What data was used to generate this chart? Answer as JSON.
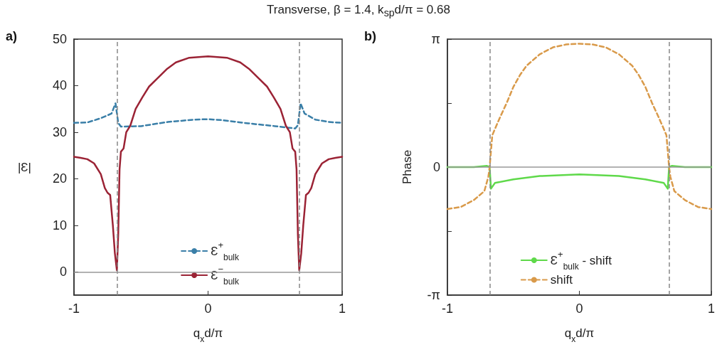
{
  "chart_data": [
    {
      "type": "line",
      "title": "Transverse, β = 1.4, k$_{sp}$d/π = 0.68",
      "annotations": [
        "a)"
      ],
      "xlabel": "q$_{x}$d/π",
      "ylabel": "|Ɛ|",
      "xlim": [
        -1,
        1
      ],
      "xticks": [
        -1,
        0,
        1
      ],
      "ylim": [
        -5,
        50
      ],
      "yticks": [
        0,
        10,
        20,
        30,
        40,
        50
      ],
      "grid": false,
      "legend": "bottom right",
      "marker": "none",
      "ref_lines": [
        {
          "axis": "x",
          "value": -0.68,
          "label": null,
          "color": "#888888",
          "line_style": "dashed"
        },
        {
          "axis": "x",
          "value": 0.68,
          "label": null,
          "color": "#888888",
          "line_style": "dashed"
        },
        {
          "axis": "y",
          "value": 0,
          "label": null,
          "color": "#999999",
          "line_style": "solid"
        }
      ],
      "series": [
        {
          "name": "Ɛ$^{+}$$_{bulk}$",
          "color": "#3a7fa8",
          "line_style": "dashed",
          "x": [
            -1,
            -0.9,
            -0.8,
            -0.72,
            -0.69,
            -0.67,
            -0.65,
            -0.5,
            -0.3,
            -0.1,
            0,
            0.1,
            0.3,
            0.5,
            0.65,
            0.67,
            0.69,
            0.72,
            0.8,
            0.9,
            1
          ],
          "values": [
            32,
            32.1,
            33,
            34,
            36.2,
            32,
            31.2,
            31.3,
            32.2,
            32.7,
            32.8,
            32.6,
            31.9,
            31.3,
            30.8,
            31.5,
            36.2,
            34,
            32.7,
            32.2,
            32
          ]
        },
        {
          "name": "Ɛ$^{−}$$_{bulk}$",
          "color": "#9b2335",
          "line_style": "solid",
          "x": [
            -1,
            -0.95,
            -0.9,
            -0.85,
            -0.8,
            -0.77,
            -0.75,
            -0.73,
            -0.71,
            -0.695,
            -0.68,
            -0.67,
            -0.66,
            -0.65,
            -0.63,
            -0.61,
            -0.58,
            -0.54,
            -0.49,
            -0.44,
            -0.38,
            -0.31,
            -0.24,
            -0.14,
            0,
            0.14,
            0.24,
            0.31,
            0.38,
            0.44,
            0.49,
            0.54,
            0.58,
            0.61,
            0.63,
            0.65,
            0.66,
            0.67,
            0.68,
            0.695,
            0.71,
            0.73,
            0.75,
            0.77,
            0.8,
            0.85,
            0.9,
            0.95,
            1
          ],
          "values": [
            24.7,
            24.5,
            24.2,
            23.3,
            21,
            18,
            17,
            16.5,
            10,
            4,
            0.3,
            8,
            22,
            25.8,
            26.5,
            30,
            31.4,
            35,
            37.5,
            39.8,
            41.5,
            43.5,
            45,
            46,
            46.3,
            46,
            45,
            43.5,
            41.5,
            39.8,
            37.5,
            35,
            31.4,
            30,
            26.5,
            25.8,
            22,
            8,
            0.3,
            4,
            10,
            16.5,
            17,
            18,
            21,
            23.3,
            24.2,
            24.5,
            24.7
          ]
        }
      ]
    },
    {
      "type": "line",
      "annotations": [
        "b)"
      ],
      "xlabel": "q$_{x}$d/π",
      "ylabel": "Phase",
      "xlim": [
        -1,
        1
      ],
      "xticks": [
        -1,
        0,
        1
      ],
      "ylim": [
        -3.1416,
        3.1416
      ],
      "yticks": [
        {
          "value": -3.1416,
          "label": "-π"
        },
        {
          "value": -1.5708,
          "label": null
        },
        0,
        {
          "value": 1.5708,
          "label": null
        },
        {
          "value": 3.1416,
          "label": "π"
        }
      ],
      "grid": false,
      "legend": "bottom right",
      "marker": "none",
      "ref_lines": [
        {
          "axis": "x",
          "value": -0.68,
          "label": null,
          "color": "#888888",
          "line_style": "dashed"
        },
        {
          "axis": "x",
          "value": 0.68,
          "label": null,
          "color": "#888888",
          "line_style": "dashed"
        },
        {
          "axis": "y",
          "value": 0,
          "label": null,
          "color": "#999999",
          "line_style": "solid"
        }
      ],
      "series": [
        {
          "name": "Ɛ$^{+}$$_{bulk}$ - shift",
          "color": "#5fd94a",
          "line_style": "solid",
          "x": [
            -1,
            -0.8,
            -0.7,
            -0.68,
            -0.67,
            -0.64,
            -0.5,
            -0.3,
            0,
            0.3,
            0.5,
            0.64,
            0.67,
            0.68,
            0.7,
            0.8,
            1
          ],
          "values": [
            0,
            0,
            0.03,
            0,
            -0.53,
            -0.39,
            -0.3,
            -0.22,
            -0.18,
            -0.22,
            -0.3,
            -0.39,
            -0.53,
            0,
            0.03,
            0,
            0
          ]
        },
        {
          "name": "shift",
          "color": "#d99a4a",
          "line_style": "dashed",
          "x": [
            -1,
            -0.9,
            -0.8,
            -0.72,
            -0.69,
            -0.68,
            -0.66,
            -0.63,
            -0.6,
            -0.55,
            -0.5,
            -0.45,
            -0.4,
            -0.3,
            -0.2,
            -0.1,
            0,
            0.1,
            0.2,
            0.3,
            0.4,
            0.45,
            0.5,
            0.55,
            0.6,
            0.63,
            0.66,
            0.68,
            0.69,
            0.72,
            0.8,
            0.9,
            1
          ],
          "values": [
            -1.03,
            -0.98,
            -0.81,
            -0.59,
            -0.24,
            0,
            0.78,
            1.01,
            1.23,
            1.58,
            1.97,
            2.26,
            2.49,
            2.77,
            2.94,
            3.01,
            3.03,
            3.01,
            2.94,
            2.77,
            2.49,
            2.26,
            1.97,
            1.58,
            1.23,
            1.01,
            0.78,
            0,
            -0.24,
            -0.59,
            -0.81,
            -0.98,
            -1.03
          ]
        }
      ]
    }
  ]
}
